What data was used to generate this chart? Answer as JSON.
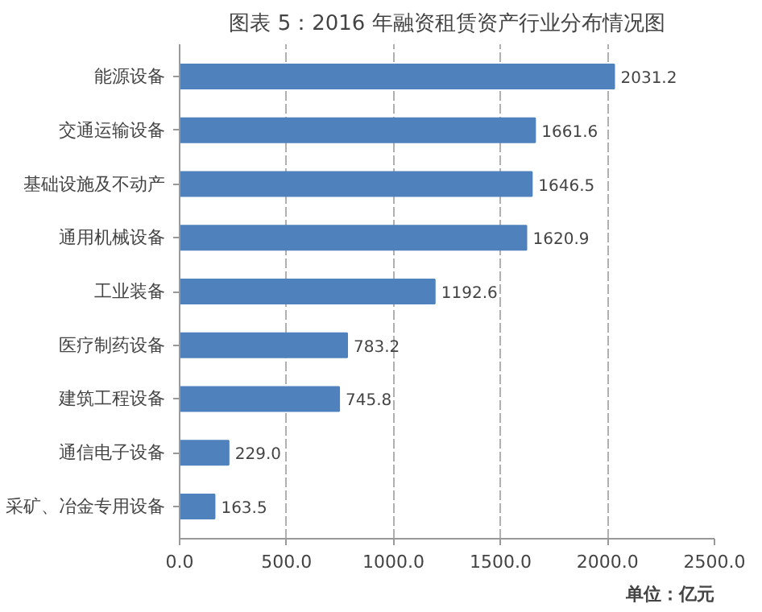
{
  "chart_data": {
    "type": "bar",
    "orientation": "horizontal",
    "title": "图表 5：2016 年融资租赁资产行业分布情况图",
    "categories": [
      "能源设备",
      "交通运输设备",
      "基础设施及不动产",
      "通用机械设备",
      "工业装备",
      "医疗制药设备",
      "建筑工程设备",
      "通信电子设备",
      "采矿、冶金专用设备"
    ],
    "values": [
      2031.2,
      1661.6,
      1646.5,
      1620.9,
      1192.6,
      783.2,
      745.8,
      229.0,
      163.5
    ],
    "value_labels": [
      "2031.2",
      "1661.6",
      "1646.5",
      "1620.9",
      "1192.6",
      "783.2",
      "745.8",
      "229.0",
      "163.5"
    ],
    "color": "#4f81bd",
    "xlim": [
      0,
      2500
    ],
    "xticks": [
      {
        "value": 0,
        "label": "0.0"
      },
      {
        "value": 500,
        "label": "500.0"
      },
      {
        "value": 1000,
        "label": "1000.0"
      },
      {
        "value": 1500,
        "label": "1500.0"
      },
      {
        "value": 2000,
        "label": "2000.0"
      },
      {
        "value": 2500,
        "label": "2500.0"
      }
    ],
    "grid": "x",
    "annotations": [
      "单位：亿元"
    ]
  }
}
